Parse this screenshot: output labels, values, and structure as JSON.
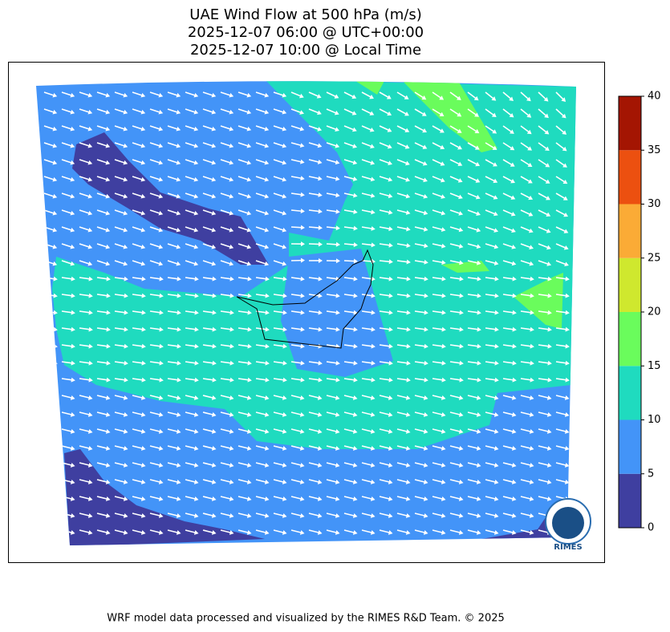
{
  "title": [
    "UAE Wind Flow at 500 hPa (m/s)",
    "2025-12-07 06:00 @ UTC+00:00",
    "2025-12-07 10:00 @ Local Time"
  ],
  "colorbar": {
    "ylim": [
      0,
      40
    ],
    "yticks": [
      0,
      5,
      10,
      15,
      20,
      25,
      30,
      35,
      40
    ],
    "colors": [
      "#3f3fa0",
      "#4394f8",
      "#1fdbbf",
      "#6afc5c",
      "#cfe82e",
      "#fbab36",
      "#ec5010",
      "#a41502"
    ]
  },
  "logo": "RIMES",
  "footer": "WRF model data processed and visualized by the RIMES R&D Team. © 2025"
}
